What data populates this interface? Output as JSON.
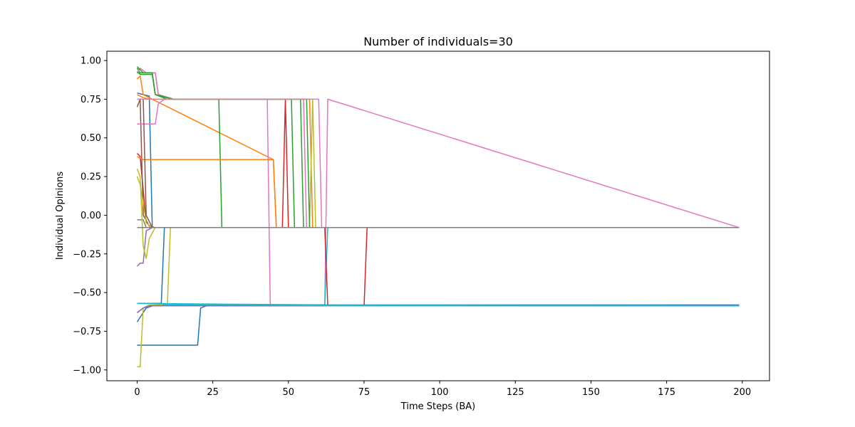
{
  "chart_data": {
    "type": "line",
    "title": "Number of individuals=30",
    "xlabel": "Time Steps (BA)",
    "ylabel": "Individual Opinions",
    "xlim": [
      -10,
      209
    ],
    "ylim": [
      -1.07,
      1.06
    ],
    "xticks": [
      0,
      25,
      50,
      75,
      100,
      125,
      150,
      175,
      200
    ],
    "yticks": [
      -1.0,
      -0.75,
      -0.5,
      -0.25,
      0.0,
      0.25,
      0.5,
      0.75,
      1.0
    ],
    "xtick_labels": [
      "0",
      "25",
      "50",
      "75",
      "100",
      "125",
      "150",
      "175",
      "200"
    ],
    "ytick_labels": [
      "−1.00",
      "−0.75",
      "−0.50",
      "−0.25",
      "0.00",
      "0.25",
      "0.50",
      "0.75",
      "1.00"
    ],
    "grid": false,
    "legend": "none",
    "series": [
      {
        "color": "#1f77b4",
        "points": [
          [
            0,
            0.79
          ],
          [
            2,
            0.78
          ],
          [
            4,
            0.77
          ],
          [
            5,
            -0.08
          ],
          [
            199,
            -0.08
          ]
        ]
      },
      {
        "color": "#ff7f0e",
        "points": [
          [
            0,
            0.88
          ],
          [
            1,
            0.9
          ],
          [
            2,
            0.78
          ],
          [
            5,
            0.75
          ],
          [
            199,
            -0.08
          ],
          [
            45,
            0.36
          ],
          [
            46,
            -0.08
          ]
        ]
      },
      {
        "color": "#2ca02c",
        "points": [
          [
            0,
            0.95
          ],
          [
            1,
            0.92
          ],
          [
            6,
            0.92
          ],
          [
            7,
            0.78
          ],
          [
            12,
            0.75
          ],
          [
            27,
            0.75
          ],
          [
            28,
            -0.08
          ],
          [
            199,
            -0.08
          ]
        ]
      },
      {
        "color": "#d62728",
        "points": [
          [
            0,
            0.4
          ],
          [
            1,
            0.38
          ],
          [
            3,
            -0.05
          ],
          [
            5,
            -0.08
          ],
          [
            48,
            -0.08
          ],
          [
            49,
            0.75
          ],
          [
            50,
            -0.08
          ],
          [
            199,
            -0.08
          ]
        ]
      },
      {
        "color": "#9467bd",
        "points": [
          [
            0,
            -0.33
          ],
          [
            1,
            -0.31
          ],
          [
            2,
            -0.31
          ],
          [
            3,
            -0.1
          ],
          [
            5,
            -0.08
          ],
          [
            199,
            -0.08
          ]
        ]
      },
      {
        "color": "#8c564b",
        "points": [
          [
            0,
            0.7
          ],
          [
            1,
            0.75
          ],
          [
            2,
            0.0
          ],
          [
            4,
            -0.07
          ],
          [
            6,
            -0.08
          ],
          [
            199,
            -0.08
          ]
        ]
      },
      {
        "color": "#e377c2",
        "points": [
          [
            0,
            0.59
          ],
          [
            6,
            0.59
          ],
          [
            7,
            0.72
          ],
          [
            9,
            0.75
          ],
          [
            43,
            0.75
          ],
          [
            44,
            -0.58
          ],
          [
            62,
            -0.58
          ],
          [
            63,
            0.75
          ],
          [
            199,
            -0.08
          ]
        ]
      },
      {
        "color": "#7f7f7f",
        "points": [
          [
            0,
            -0.03
          ],
          [
            2,
            -0.03
          ],
          [
            3,
            -0.08
          ],
          [
            199,
            -0.08
          ]
        ]
      },
      {
        "color": "#bcbd22",
        "points": [
          [
            0,
            0.3
          ],
          [
            1,
            0.25
          ],
          [
            2,
            -0.2
          ],
          [
            3,
            -0.28
          ],
          [
            4,
            -0.15
          ],
          [
            6,
            -0.08
          ],
          [
            199,
            -0.08
          ]
        ]
      },
      {
        "color": "#17becf",
        "points": [
          [
            0,
            -0.57
          ],
          [
            62,
            -0.58
          ],
          [
            63,
            -0.08
          ],
          [
            199,
            -0.08
          ]
        ]
      },
      {
        "color": "#1f77b4",
        "points": [
          [
            0,
            -0.69
          ],
          [
            1,
            -0.66
          ],
          [
            3,
            -0.6
          ],
          [
            6,
            -0.58
          ],
          [
            199,
            -0.58
          ]
        ]
      },
      {
        "color": "#1f77b4",
        "points": [
          [
            0,
            -0.84
          ],
          [
            20,
            -0.84
          ],
          [
            21,
            -0.6
          ],
          [
            23,
            -0.585
          ],
          [
            199,
            -0.585
          ]
        ]
      },
      {
        "color": "#bcbd22",
        "points": [
          [
            0,
            -0.98
          ],
          [
            1,
            -0.98
          ],
          [
            2,
            -0.6
          ],
          [
            4,
            -0.58
          ],
          [
            10,
            -0.58
          ],
          [
            11,
            -0.08
          ],
          [
            199,
            -0.08
          ]
        ]
      },
      {
        "color": "#d62728",
        "points": [
          [
            0,
            -0.08
          ],
          [
            62,
            -0.08
          ],
          [
            63,
            -0.58
          ],
          [
            75,
            -0.585
          ],
          [
            76,
            -0.08
          ],
          [
            199,
            -0.08
          ]
        ]
      },
      {
        "color": "#9467bd",
        "points": [
          [
            0,
            -0.63
          ],
          [
            2,
            -0.6
          ],
          [
            4,
            -0.585
          ],
          [
            199,
            -0.585
          ]
        ]
      },
      {
        "color": "#17becf",
        "points": [
          [
            0,
            -0.57
          ],
          [
            8,
            -0.57
          ],
          [
            9,
            -0.58
          ],
          [
            199,
            -0.585
          ]
        ]
      },
      {
        "color": "#1f77b4",
        "points": [
          [
            0,
            -0.57
          ],
          [
            8,
            -0.57
          ],
          [
            9,
            -0.08
          ],
          [
            199,
            -0.08
          ]
        ]
      },
      {
        "color": "#2ca02c",
        "points": [
          [
            0,
            0.93
          ],
          [
            1,
            0.91
          ],
          [
            5,
            0.91
          ],
          [
            6,
            0.78
          ],
          [
            10,
            0.75
          ],
          [
            51,
            0.75
          ],
          [
            52,
            -0.08
          ],
          [
            199,
            -0.08
          ]
        ]
      },
      {
        "color": "#ff7f0e",
        "points": [
          [
            0,
            0.38
          ],
          [
            2,
            0.36
          ],
          [
            45,
            0.36
          ],
          [
            46,
            -0.08
          ],
          [
            199,
            -0.08
          ]
        ]
      },
      {
        "color": "#e377c2",
        "points": [
          [
            0,
            0.92
          ],
          [
            1,
            0.95
          ],
          [
            3,
            0.92
          ],
          [
            6,
            0.92
          ],
          [
            7,
            0.78
          ],
          [
            12,
            0.75
          ],
          [
            55,
            0.75
          ],
          [
            56,
            -0.08
          ],
          [
            199,
            -0.08
          ]
        ]
      },
      {
        "color": "#2ca02c",
        "points": [
          [
            0,
            0.96
          ],
          [
            2,
            0.92
          ],
          [
            5,
            0.92
          ],
          [
            6,
            0.78
          ],
          [
            12,
            0.75
          ],
          [
            54,
            0.75
          ],
          [
            55,
            -0.08
          ],
          [
            199,
            -0.08
          ]
        ]
      },
      {
        "color": "#ff7f0e",
        "points": [
          [
            0,
            0.78
          ],
          [
            2,
            0.76
          ],
          [
            4,
            0.75
          ],
          [
            57,
            0.75
          ],
          [
            58,
            -0.08
          ],
          [
            199,
            -0.08
          ]
        ]
      },
      {
        "color": "#bcbd22",
        "points": [
          [
            0,
            0.25
          ],
          [
            1,
            0.2
          ],
          [
            3,
            -0.05
          ],
          [
            5,
            -0.08
          ],
          [
            57,
            -0.08
          ],
          [
            58,
            0.75
          ],
          [
            59,
            -0.08
          ],
          [
            199,
            -0.08
          ]
        ]
      },
      {
        "color": "#8c564b",
        "points": [
          [
            0,
            0.75
          ],
          [
            2,
            0.75
          ],
          [
            3,
            0.0
          ],
          [
            5,
            -0.08
          ],
          [
            199,
            -0.08
          ]
        ]
      },
      {
        "color": "#2ca02c",
        "points": [
          [
            0,
            0.92
          ],
          [
            5,
            0.92
          ],
          [
            6,
            0.78
          ],
          [
            12,
            0.75
          ],
          [
            56,
            0.75
          ],
          [
            57,
            -0.08
          ],
          [
            199,
            -0.08
          ]
        ]
      },
      {
        "color": "#9467bd",
        "points": [
          [
            0,
            -0.63
          ],
          [
            2,
            -0.6
          ],
          [
            5,
            -0.585
          ],
          [
            199,
            -0.585
          ]
        ]
      },
      {
        "color": "#e377c2",
        "points": [
          [
            0,
            0.75
          ],
          [
            60,
            0.75
          ],
          [
            61,
            -0.08
          ],
          [
            199,
            -0.08
          ]
        ]
      },
      {
        "color": "#17becf",
        "points": [
          [
            0,
            -0.57
          ],
          [
            63,
            -0.585
          ],
          [
            199,
            -0.585
          ]
        ]
      },
      {
        "color": "#d62728",
        "points": [
          [
            0,
            -0.08
          ],
          [
            50,
            -0.08
          ],
          [
            51,
            -0.08
          ],
          [
            199,
            -0.08
          ]
        ]
      },
      {
        "color": "#7f7f7f",
        "points": [
          [
            0,
            -0.08
          ],
          [
            199,
            -0.08
          ]
        ]
      }
    ]
  }
}
